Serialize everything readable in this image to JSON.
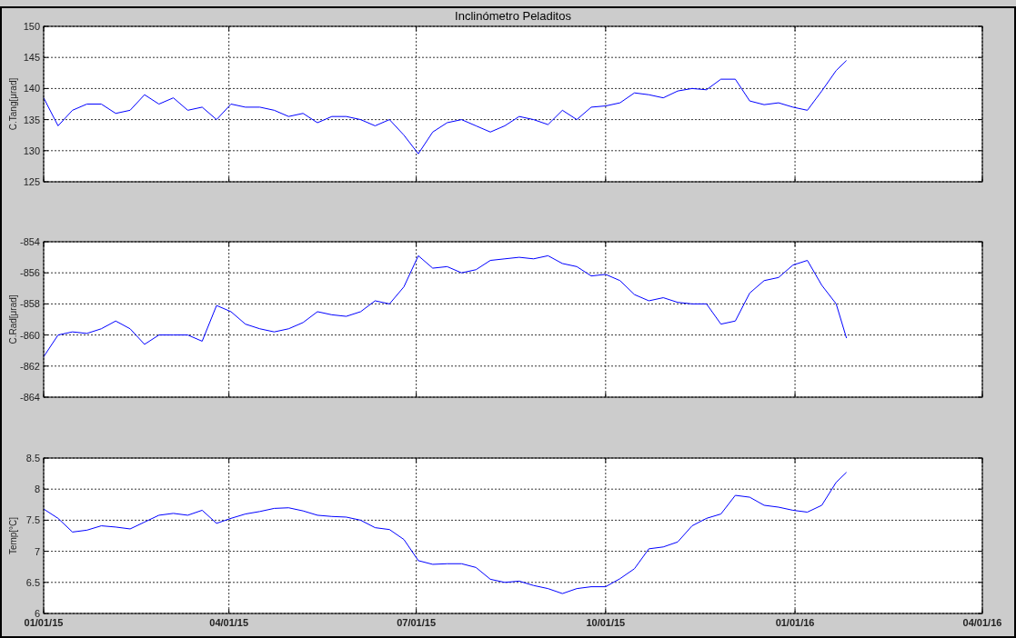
{
  "chart_data": [
    {
      "type": "line",
      "title": "Inclinómetro Peladitos",
      "ylabel": "C.Tang[μrad]",
      "tick_labels": "y",
      "grid": true,
      "x": [
        "2015-01-01",
        "2015-01-08",
        "2015-01-15",
        "2015-01-22",
        "2015-01-29",
        "2015-02-05",
        "2015-02-12",
        "2015-02-19",
        "2015-02-26",
        "2015-03-05",
        "2015-03-12",
        "2015-03-19",
        "2015-03-26",
        "2015-04-02",
        "2015-04-09",
        "2015-04-16",
        "2015-04-23",
        "2015-04-30",
        "2015-05-07",
        "2015-05-14",
        "2015-05-21",
        "2015-05-28",
        "2015-06-04",
        "2015-06-11",
        "2015-06-18",
        "2015-06-25",
        "2015-07-02",
        "2015-07-09",
        "2015-07-16",
        "2015-07-23",
        "2015-07-30",
        "2015-08-06",
        "2015-08-13",
        "2015-08-20",
        "2015-08-27",
        "2015-09-03",
        "2015-09-10",
        "2015-09-17",
        "2015-09-24",
        "2015-10-01",
        "2015-10-08",
        "2015-10-15",
        "2015-10-22",
        "2015-10-29",
        "2015-11-05",
        "2015-11-12",
        "2015-11-19",
        "2015-11-26",
        "2015-12-03",
        "2015-12-10",
        "2015-12-17",
        "2015-12-24",
        "2015-12-31",
        "2016-01-07",
        "2016-01-14",
        "2016-01-21",
        "2016-01-26"
      ],
      "series": [
        {
          "color": "#0000ff",
          "values": [
            138.5,
            134,
            136.5,
            137.5,
            137.5,
            136,
            136.5,
            139,
            137.5,
            138.5,
            136.5,
            137,
            135,
            137.5,
            137,
            137,
            136.5,
            135.5,
            136,
            134.5,
            135.5,
            135.5,
            135,
            134,
            135,
            132.5,
            129.5,
            133,
            134.5,
            135,
            134,
            133,
            134,
            135.5,
            135,
            134.2,
            136.5,
            135,
            137,
            137.2,
            137.7,
            139.3,
            139,
            138.5,
            139.6,
            140,
            139.8,
            141.5,
            141.5,
            138,
            137.4,
            137.7,
            137,
            136.5,
            139.6,
            142.9,
            144.5
          ]
        }
      ],
      "xlim": [
        "2015-01-01",
        "2016-04-01"
      ],
      "xticks": [
        {
          "value": "2015-01-01",
          "label": null
        },
        {
          "value": "2015-04-01",
          "label": null
        },
        {
          "value": "2015-07-01",
          "label": null
        },
        {
          "value": "2015-10-01",
          "label": null
        },
        {
          "value": "2016-01-01",
          "label": null
        },
        {
          "value": "2016-04-01",
          "label": null
        }
      ],
      "ylim": [
        125,
        150
      ],
      "yticks": [
        125,
        130,
        135,
        140,
        145,
        150
      ]
    },
    {
      "type": "line",
      "ylabel": "C.Rad[μrad]",
      "tick_labels": "y",
      "grid": true,
      "x": [
        "2015-01-01",
        "2015-01-08",
        "2015-01-15",
        "2015-01-22",
        "2015-01-29",
        "2015-02-05",
        "2015-02-12",
        "2015-02-19",
        "2015-02-26",
        "2015-03-05",
        "2015-03-12",
        "2015-03-19",
        "2015-03-26",
        "2015-04-02",
        "2015-04-09",
        "2015-04-16",
        "2015-04-23",
        "2015-04-30",
        "2015-05-07",
        "2015-05-14",
        "2015-05-21",
        "2015-05-28",
        "2015-06-04",
        "2015-06-11",
        "2015-06-18",
        "2015-06-25",
        "2015-07-02",
        "2015-07-09",
        "2015-07-16",
        "2015-07-23",
        "2015-07-30",
        "2015-08-06",
        "2015-08-13",
        "2015-08-20",
        "2015-08-27",
        "2015-09-03",
        "2015-09-10",
        "2015-09-17",
        "2015-09-24",
        "2015-10-01",
        "2015-10-08",
        "2015-10-15",
        "2015-10-22",
        "2015-10-29",
        "2015-11-05",
        "2015-11-12",
        "2015-11-19",
        "2015-11-26",
        "2015-12-03",
        "2015-12-10",
        "2015-12-17",
        "2015-12-24",
        "2015-12-31",
        "2016-01-07",
        "2016-01-14",
        "2016-01-21",
        "2016-01-26"
      ],
      "series": [
        {
          "color": "#0000ff",
          "values": [
            -861.4,
            -860,
            -859.8,
            -859.9,
            -859.6,
            -859.1,
            -859.6,
            -860.6,
            -860,
            -860,
            -860,
            -860.4,
            -858.1,
            -858.5,
            -859.3,
            -859.6,
            -859.8,
            -859.6,
            -859.2,
            -858.5,
            -858.7,
            -858.8,
            -858.5,
            -857.8,
            -858,
            -856.9,
            -854.9,
            -855.7,
            -855.6,
            -856,
            -855.8,
            -855.2,
            -855.1,
            -855,
            -855.1,
            -854.9,
            -855.4,
            -855.6,
            -856.2,
            -856.1,
            -856.5,
            -857.4,
            -857.8,
            -857.6,
            -857.9,
            -858,
            -858,
            -859.3,
            -859.1,
            -857.3,
            -856.5,
            -856.3,
            -855.5,
            -855.2,
            -856.8,
            -858,
            -860.2
          ]
        }
      ],
      "xlim": [
        "2015-01-01",
        "2016-04-01"
      ],
      "xticks": [
        {
          "value": "2015-01-01",
          "label": null
        },
        {
          "value": "2015-04-01",
          "label": null
        },
        {
          "value": "2015-07-01",
          "label": null
        },
        {
          "value": "2015-10-01",
          "label": null
        },
        {
          "value": "2016-01-01",
          "label": null
        },
        {
          "value": "2016-04-01",
          "label": null
        }
      ],
      "ylim": [
        -864,
        -854
      ],
      "yticks": [
        -864,
        -862,
        -860,
        -858,
        -856,
        -854
      ]
    },
    {
      "type": "line",
      "ylabel": "Temp[°C]",
      "grid": true,
      "x": [
        "2015-01-01",
        "2015-01-08",
        "2015-01-15",
        "2015-01-22",
        "2015-01-29",
        "2015-02-05",
        "2015-02-12",
        "2015-02-19",
        "2015-02-26",
        "2015-03-05",
        "2015-03-12",
        "2015-03-19",
        "2015-03-26",
        "2015-04-02",
        "2015-04-09",
        "2015-04-16",
        "2015-04-23",
        "2015-04-30",
        "2015-05-07",
        "2015-05-14",
        "2015-05-21",
        "2015-05-28",
        "2015-06-04",
        "2015-06-11",
        "2015-06-18",
        "2015-06-25",
        "2015-07-02",
        "2015-07-09",
        "2015-07-16",
        "2015-07-23",
        "2015-07-30",
        "2015-08-06",
        "2015-08-13",
        "2015-08-20",
        "2015-08-27",
        "2015-09-03",
        "2015-09-10",
        "2015-09-17",
        "2015-09-24",
        "2015-10-01",
        "2015-10-08",
        "2015-10-15",
        "2015-10-22",
        "2015-10-29",
        "2015-11-05",
        "2015-11-12",
        "2015-11-19",
        "2015-11-26",
        "2015-12-03",
        "2015-12-10",
        "2015-12-17",
        "2015-12-24",
        "2015-12-31",
        "2016-01-07",
        "2016-01-14",
        "2016-01-21",
        "2016-01-26"
      ],
      "series": [
        {
          "color": "#0000ff",
          "values": [
            7.68,
            7.53,
            7.31,
            7.34,
            7.41,
            7.39,
            7.36,
            7.47,
            7.58,
            7.61,
            7.58,
            7.66,
            7.45,
            7.53,
            7.6,
            7.64,
            7.69,
            7.7,
            7.65,
            7.58,
            7.56,
            7.55,
            7.5,
            7.38,
            7.35,
            7.19,
            6.85,
            6.79,
            6.8,
            6.8,
            6.74,
            6.55,
            6.5,
            6.52,
            6.45,
            6.4,
            6.32,
            6.4,
            6.43,
            6.43,
            6.56,
            6.72,
            7.04,
            7.07,
            7.15,
            7.41,
            7.53,
            7.6,
            7.9,
            7.87,
            7.74,
            7.71,
            7.66,
            7.63,
            7.74,
            8.11,
            8.27
          ]
        }
      ],
      "xlim": [
        "2015-01-01",
        "2016-04-01"
      ],
      "xticks": [
        {
          "value": "2015-01-01",
          "label": "01/01/15"
        },
        {
          "value": "2015-04-01",
          "label": "04/01/15"
        },
        {
          "value": "2015-07-01",
          "label": "07/01/15"
        },
        {
          "value": "2015-10-01",
          "label": "10/01/15"
        },
        {
          "value": "2016-01-01",
          "label": "01/01/16"
        },
        {
          "value": "2016-04-01",
          "label": "04/01/16"
        }
      ],
      "ylim": [
        6,
        8.5
      ],
      "yticks": [
        6,
        6.5,
        7,
        7.5,
        8,
        8.5
      ]
    }
  ]
}
